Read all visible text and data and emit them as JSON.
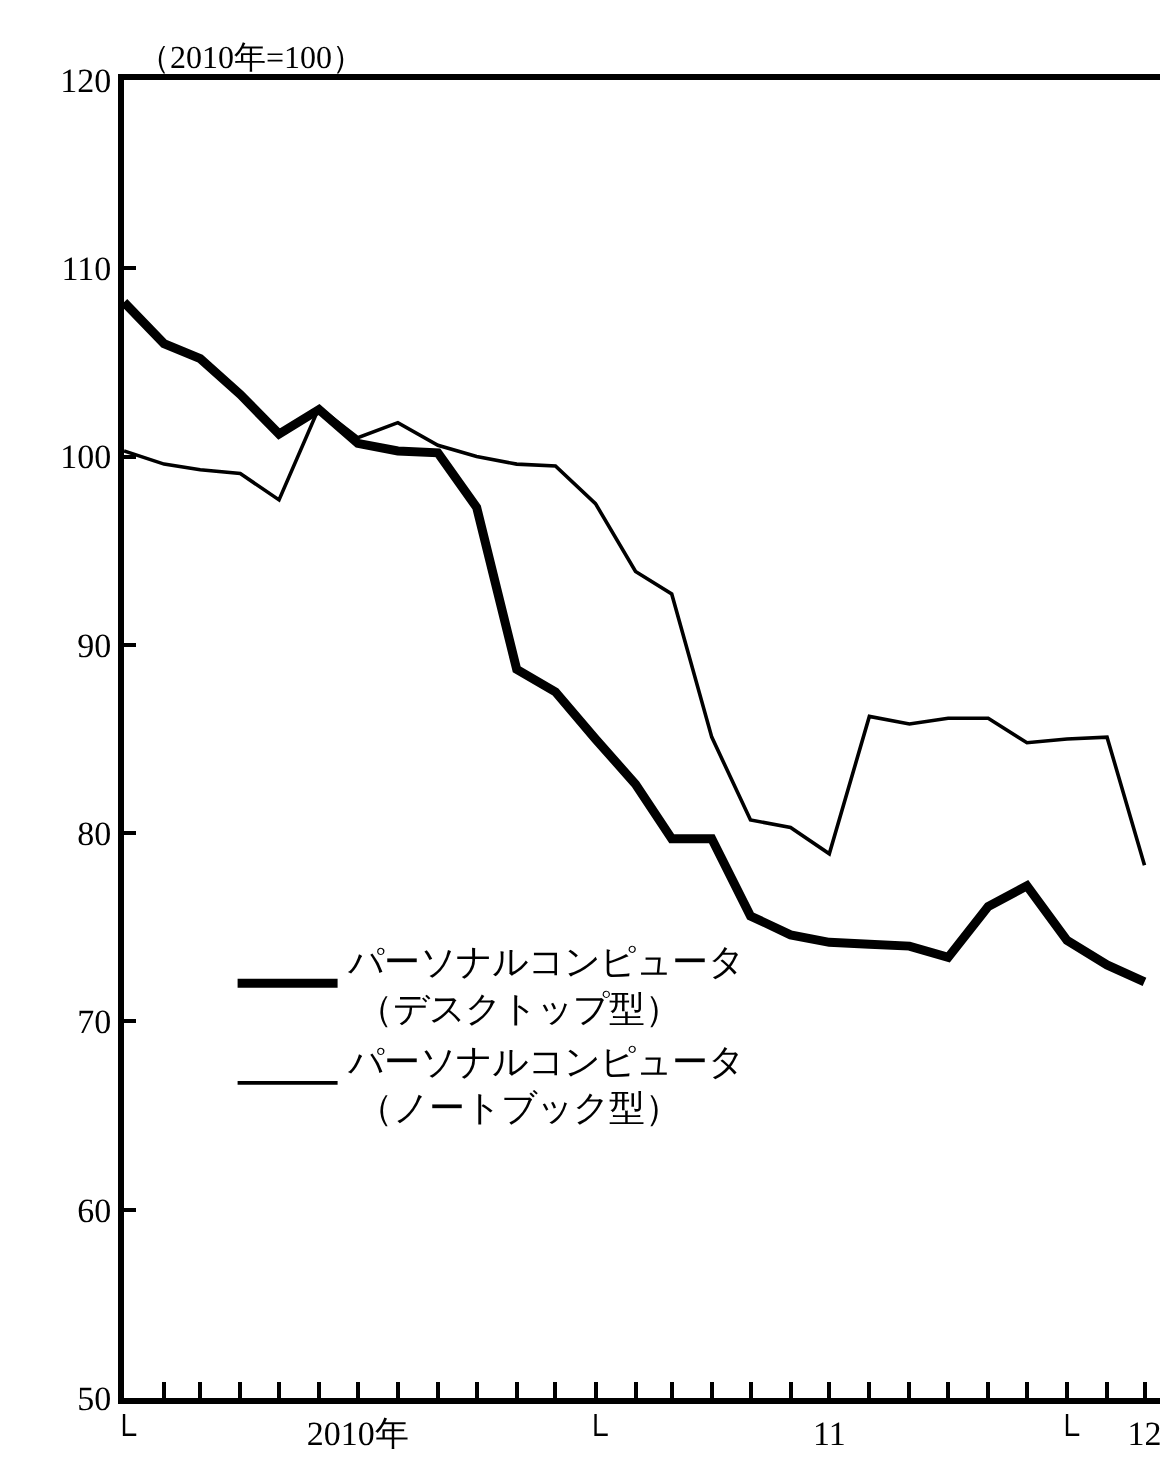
{
  "chart_data": {
    "type": "line",
    "ylabel": "（2010年=100）",
    "x": [
      "2010-01",
      "2010-02",
      "2010-03",
      "2010-04",
      "2010-05",
      "2010-06",
      "2010-07",
      "2010-08",
      "2010-09",
      "2010-10",
      "2010-11",
      "2010-12",
      "2011-01",
      "2011-02",
      "2011-03",
      "2011-04",
      "2011-05",
      "2011-06",
      "2011-07",
      "2011-08",
      "2011-09",
      "2011-10",
      "2011-11",
      "2011-12",
      "2012-01",
      "2012-02",
      "2012-03"
    ],
    "series": [
      {
        "name": "パーソナルコンピュータ（デスクトップ型）",
        "color": "#000000",
        "values": [
          108.2,
          106.0,
          105.2,
          103.3,
          101.2,
          102.5,
          100.7,
          100.3,
          100.2,
          97.3,
          88.7,
          87.5,
          85.0,
          82.6,
          79.7,
          79.7,
          75.6,
          74.6,
          74.2,
          74.1,
          74.0,
          73.4,
          76.1,
          77.2,
          74.3,
          73.0,
          72.1
        ]
      },
      {
        "name": "パーソナルコンピュータ（ノートブック型）",
        "color": "#000000",
        "values": [
          100.3,
          99.6,
          99.3,
          99.1,
          97.7,
          102.6,
          101.0,
          101.8,
          100.6,
          100.0,
          99.6,
          99.5,
          97.5,
          93.9,
          92.7,
          85.1,
          80.7,
          80.3,
          78.9,
          86.2,
          85.8,
          86.1,
          86.1,
          84.8,
          85.0,
          85.1,
          78.3
        ]
      }
    ],
    "xlim": [
      "2010-01-01",
      "2012-03-13"
    ],
    "xticks": [
      {
        "value": "2010-01",
        "label": "└"
      },
      {
        "value": "2010-02",
        "label": null
      },
      {
        "value": "2010-03",
        "label": null
      },
      {
        "value": "2010-04",
        "label": null
      },
      {
        "value": "2010-05",
        "label": null
      },
      {
        "value": "2010-06",
        "label": null
      },
      {
        "value": "2010-07",
        "label": "2010年"
      },
      {
        "value": "2010-08",
        "label": null
      },
      {
        "value": "2010-09",
        "label": null
      },
      {
        "value": "2010-10",
        "label": null
      },
      {
        "value": "2010-11",
        "label": null
      },
      {
        "value": "2010-12",
        "label": null
      },
      {
        "value": "2011-01",
        "label": "└"
      },
      {
        "value": "2011-02",
        "label": null
      },
      {
        "value": "2011-03",
        "label": null
      },
      {
        "value": "2011-04",
        "label": null
      },
      {
        "value": "2011-05",
        "label": null
      },
      {
        "value": "2011-06",
        "label": null
      },
      {
        "value": "2011-07",
        "label": "11"
      },
      {
        "value": "2011-08",
        "label": null
      },
      {
        "value": "2011-09",
        "label": null
      },
      {
        "value": "2011-10",
        "label": null
      },
      {
        "value": "2011-11",
        "label": null
      },
      {
        "value": "2011-12",
        "label": null
      },
      {
        "value": "2012-01",
        "label": "└"
      },
      {
        "value": "2012-02",
        "label": null
      },
      {
        "value": "2012-03",
        "label": "12"
      }
    ],
    "ylim": [
      50,
      120
    ],
    "yticks": [
      50,
      60,
      70,
      80,
      90,
      100,
      110,
      120
    ],
    "legend": "left",
    "marker": "none",
    "line_style": "solid"
  }
}
